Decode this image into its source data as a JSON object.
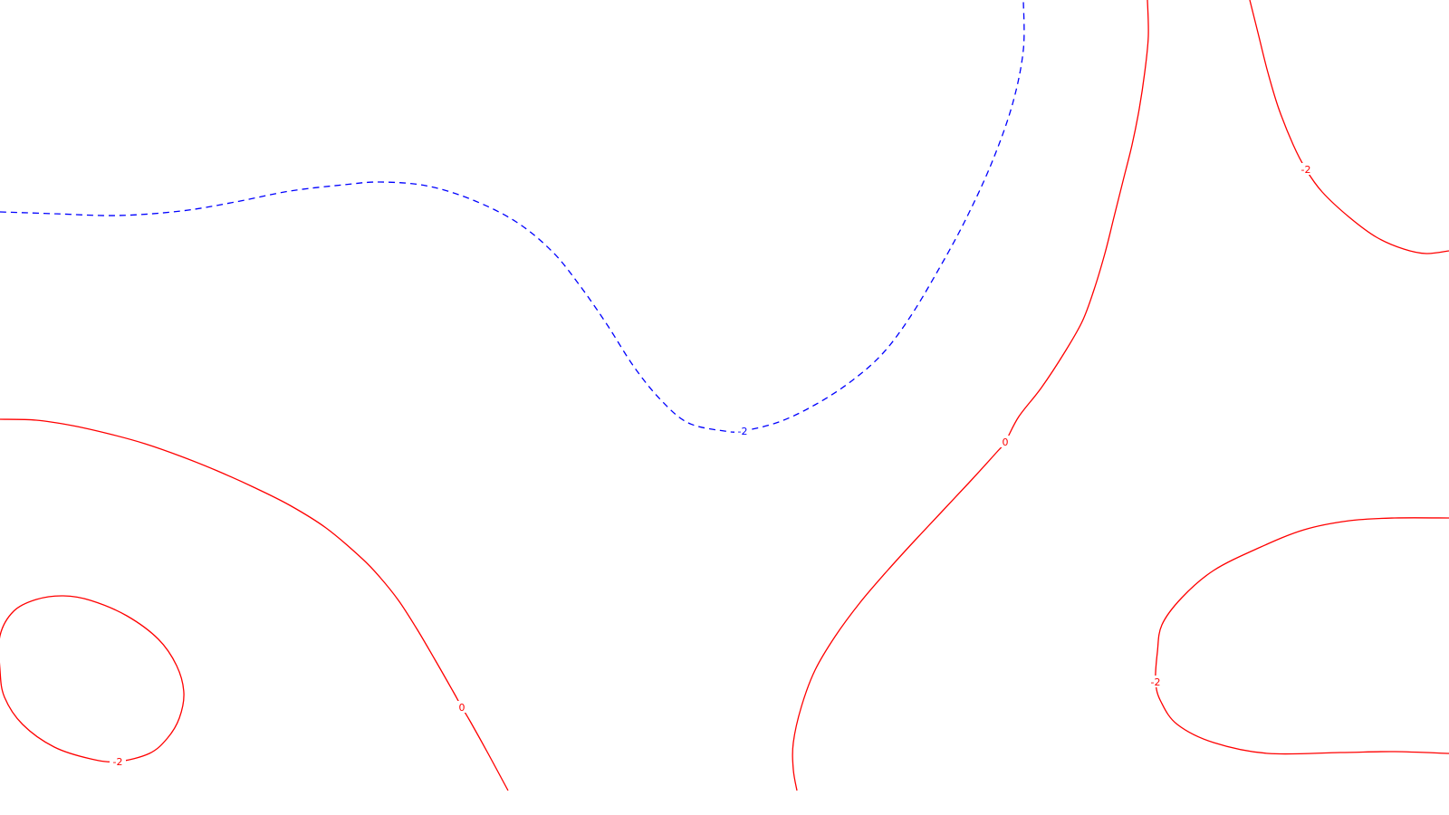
{
  "chart_data": {
    "type": "contour",
    "title": "",
    "xlabel": "",
    "ylabel": "",
    "grid": false,
    "legend": false,
    "colors": {
      "positive": "#ff0000",
      "negative": "#0000ff",
      "background": "#ffffff"
    },
    "level_labels": [
      "0",
      "0",
      "-2",
      "-2",
      "-2",
      "-2"
    ],
    "contours": [
      {
        "id": "zero-left",
        "level": 0,
        "label": "0",
        "style": "solid",
        "color": "#ff0000",
        "path": [
          [
            0,
            463
          ],
          [
            40,
            464
          ],
          [
            80,
            470
          ],
          [
            120,
            479
          ],
          [
            160,
            490
          ],
          [
            200,
            504
          ],
          [
            240,
            520
          ],
          [
            280,
            538
          ],
          [
            320,
            558
          ],
          [
            360,
            583
          ],
          [
            400,
            617
          ],
          [
            420,
            638
          ],
          [
            440,
            663
          ],
          [
            460,
            694
          ],
          [
            480,
            728
          ],
          [
            500,
            763
          ],
          [
            510,
            781
          ],
          [
            520,
            798
          ],
          [
            540,
            834
          ],
          [
            561,
            873
          ]
        ],
        "label_index": 16
      },
      {
        "id": "zero-right",
        "level": 0,
        "label": "0",
        "style": "solid",
        "color": "#ff0000",
        "path": [
          [
            1267,
            0
          ],
          [
            1268,
            40
          ],
          [
            1264,
            80
          ],
          [
            1258,
            120
          ],
          [
            1250,
            160
          ],
          [
            1240,
            200
          ],
          [
            1230,
            240
          ],
          [
            1220,
            280
          ],
          [
            1208,
            320
          ],
          [
            1195,
            355
          ],
          [
            1175,
            390
          ],
          [
            1150,
            428
          ],
          [
            1125,
            460
          ],
          [
            1110,
            488
          ],
          [
            1100,
            500
          ],
          [
            1070,
            533
          ],
          [
            1040,
            565
          ],
          [
            1010,
            597
          ],
          [
            980,
            630
          ],
          [
            950,
            665
          ],
          [
            922,
            703
          ],
          [
            900,
            740
          ],
          [
            885,
            780
          ],
          [
            876,
            820
          ],
          [
            876,
            850
          ],
          [
            880,
            873
          ]
        ],
        "label_index": 13
      },
      {
        "id": "neg2-dashed",
        "level": -2,
        "label": "-2",
        "style": "dashed",
        "color": "#0000ff",
        "path": [
          [
            0,
            234
          ],
          [
            60,
            236
          ],
          [
            130,
            238
          ],
          [
            200,
            233
          ],
          [
            260,
            223
          ],
          [
            320,
            211
          ],
          [
            380,
            204
          ],
          [
            420,
            201
          ],
          [
            470,
            205
          ],
          [
            520,
            220
          ],
          [
            570,
            245
          ],
          [
            610,
            278
          ],
          [
            640,
            315
          ],
          [
            670,
            358
          ],
          [
            700,
            405
          ],
          [
            730,
            442
          ],
          [
            760,
            467
          ],
          [
            800,
            476
          ],
          [
            820,
            476
          ],
          [
            860,
            466
          ],
          [
            900,
            447
          ],
          [
            940,
            421
          ],
          [
            975,
            390
          ],
          [
            1005,
            350
          ],
          [
            1035,
            300
          ],
          [
            1065,
            245
          ],
          [
            1095,
            180
          ],
          [
            1118,
            115
          ],
          [
            1130,
            55
          ],
          [
            1130,
            0
          ]
        ],
        "label_index": 18
      },
      {
        "id": "neg2-top-right",
        "level": -2,
        "label": "-2",
        "style": "solid",
        "color": "#ff0000",
        "path": [
          [
            1380,
            0
          ],
          [
            1390,
            40
          ],
          [
            1400,
            80
          ],
          [
            1412,
            120
          ],
          [
            1428,
            160
          ],
          [
            1442,
            187
          ],
          [
            1460,
            212
          ],
          [
            1490,
            240
          ],
          [
            1520,
            262
          ],
          [
            1550,
            275
          ],
          [
            1575,
            280
          ],
          [
            1600,
            277
          ]
        ],
        "label_index": 5
      },
      {
        "id": "neg2-bottom-right",
        "level": -2,
        "label": "-2",
        "style": "solid",
        "color": "#ff0000",
        "path": [
          [
            1600,
            572
          ],
          [
            1540,
            572
          ],
          [
            1490,
            575
          ],
          [
            1440,
            585
          ],
          [
            1390,
            605
          ],
          [
            1340,
            630
          ],
          [
            1305,
            660
          ],
          [
            1283,
            690
          ],
          [
            1278,
            720
          ],
          [
            1276,
            753
          ],
          [
            1282,
            775
          ],
          [
            1300,
            800
          ],
          [
            1340,
            820
          ],
          [
            1400,
            832
          ],
          [
            1480,
            831
          ],
          [
            1540,
            830
          ],
          [
            1600,
            832
          ]
        ],
        "label_index": 9
      },
      {
        "id": "neg2-bottom-left",
        "level": -2,
        "label": "-2",
        "style": "closed",
        "color": "#ff0000",
        "closed": true,
        "path": [
          [
            0,
            702
          ],
          [
            15,
            675
          ],
          [
            40,
            662
          ],
          [
            70,
            658
          ],
          [
            100,
            663
          ],
          [
            140,
            680
          ],
          [
            175,
            706
          ],
          [
            195,
            735
          ],
          [
            203,
            765
          ],
          [
            198,
            793
          ],
          [
            185,
            815
          ],
          [
            165,
            832
          ],
          [
            130,
            841
          ],
          [
            100,
            838
          ],
          [
            60,
            825
          ],
          [
            25,
            800
          ],
          [
            5,
            770
          ],
          [
            0,
            740
          ]
        ],
        "label_index": 12
      }
    ]
  }
}
